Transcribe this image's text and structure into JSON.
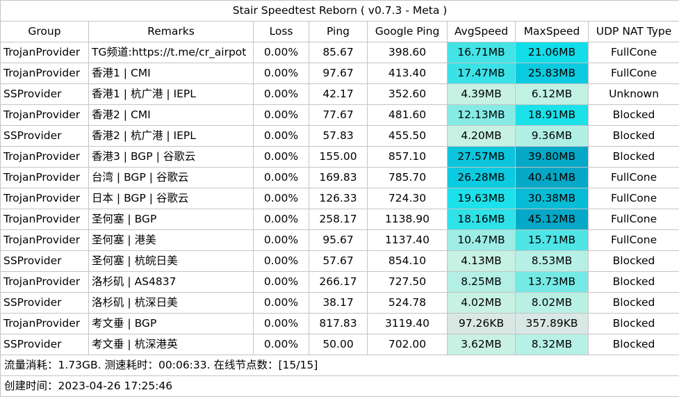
{
  "title": "Stair Speedtest Reborn ( v0.7.3 - Meta )",
  "columns": [
    "Group",
    "Remarks",
    "Loss",
    "Ping",
    "Google Ping",
    "AvgSpeed",
    "MaxSpeed",
    "UDP NAT Type"
  ],
  "rows": [
    {
      "group": "TrojanProvider",
      "remarks": "TG频道:https://t.me/cr_airpot",
      "loss": "0.00%",
      "ping": "85.67",
      "google_ping": "398.60",
      "avg_speed": "16.71MB",
      "max_speed": "21.06MB",
      "nat": "FullCone",
      "avg_color": "#43e3e6",
      "max_color": "#12dde9"
    },
    {
      "group": "TrojanProvider",
      "remarks": "香港1 | CMI",
      "loss": "0.00%",
      "ping": "97.67",
      "google_ping": "413.40",
      "avg_speed": "17.47MB",
      "max_speed": "25.83MB",
      "nat": "FullCone",
      "avg_color": "#3ae2e7",
      "max_color": "#0ccbe0"
    },
    {
      "group": "SSProvider",
      "remarks": "香港1 | 杭广港 | IEPL",
      "loss": "0.00%",
      "ping": "42.17",
      "google_ping": "352.60",
      "avg_speed": "4.39MB",
      "max_speed": "6.12MB",
      "nat": "Unknown",
      "avg_color": "#c6f1e3",
      "max_color": "#c0f1e3"
    },
    {
      "group": "TrojanProvider",
      "remarks": "香港2 | CMI",
      "loss": "0.00%",
      "ping": "77.67",
      "google_ping": "481.60",
      "avg_speed": "12.13MB",
      "max_speed": "18.91MB",
      "nat": "Blocked",
      "avg_color": "#87ebe5",
      "max_color": "#1ae1ea"
    },
    {
      "group": "SSProvider",
      "remarks": "香港2 | 杭广港 | IEPL",
      "loss": "0.00%",
      "ping": "57.83",
      "google_ping": "455.50",
      "avg_speed": "4.20MB",
      "max_speed": "9.36MB",
      "nat": "Blocked",
      "avg_color": "#c7f1e3",
      "max_color": "#b0efe4"
    },
    {
      "group": "TrojanProvider",
      "remarks": "香港3 | BGP | 谷歌云",
      "loss": "0.00%",
      "ping": "155.00",
      "google_ping": "857.10",
      "avg_speed": "27.57MB",
      "max_speed": "39.80MB",
      "nat": "Blocked",
      "avg_color": "#0cc5dc",
      "max_color": "#05a8c6"
    },
    {
      "group": "TrojanProvider",
      "remarks": "台湾 | BGP | 谷歌云",
      "loss": "0.00%",
      "ping": "169.83",
      "google_ping": "785.70",
      "avg_speed": "26.28MB",
      "max_speed": "40.41MB",
      "nat": "FullCone",
      "avg_color": "#0ccadf",
      "max_color": "#05a8c6"
    },
    {
      "group": "TrojanProvider",
      "remarks": "日本 | BGP | 谷歌云",
      "loss": "0.00%",
      "ping": "126.33",
      "google_ping": "724.30",
      "avg_speed": "19.63MB",
      "max_speed": "30.38MB",
      "nat": "FullCone",
      "avg_color": "#1ce1ea",
      "max_color": "#08bcd6"
    },
    {
      "group": "TrojanProvider",
      "remarks": "圣何塞 | BGP",
      "loss": "0.00%",
      "ping": "258.17",
      "google_ping": "1138.90",
      "avg_speed": "18.16MB",
      "max_speed": "45.12MB",
      "nat": "FullCone",
      "avg_color": "#2fe2e8",
      "max_color": "#05a8c6"
    },
    {
      "group": "TrojanProvider",
      "remarks": "圣何塞 | 港美",
      "loss": "0.00%",
      "ping": "95.67",
      "google_ping": "1137.40",
      "avg_speed": "10.47MB",
      "max_speed": "15.71MB",
      "nat": "FullCone",
      "avg_color": "#9eede5",
      "max_color": "#4fe4e6"
    },
    {
      "group": "SSProvider",
      "remarks": "圣何塞 | 杭皖日美",
      "loss": "0.00%",
      "ping": "57.67",
      "google_ping": "854.10",
      "avg_speed": "4.13MB",
      "max_speed": "8.53MB",
      "nat": "Blocked",
      "avg_color": "#c7f1e3",
      "max_color": "#b6f0e4"
    },
    {
      "group": "TrojanProvider",
      "remarks": "洛杉矶 | AS4837",
      "loss": "0.00%",
      "ping": "266.17",
      "google_ping": "727.50",
      "avg_speed": "8.25MB",
      "max_speed": "13.73MB",
      "nat": "Blocked",
      "avg_color": "#b3efe4",
      "max_color": "#75e9e5"
    },
    {
      "group": "SSProvider",
      "remarks": "洛杉矶 | 杭深日美",
      "loss": "0.00%",
      "ping": "38.17",
      "google_ping": "524.78",
      "avg_speed": "4.02MB",
      "max_speed": "8.02MB",
      "nat": "Blocked",
      "avg_color": "#c7f1e3",
      "max_color": "#b8f0e4"
    },
    {
      "group": "TrojanProvider",
      "remarks": "考文垂 | BGP",
      "loss": "0.00%",
      "ping": "817.83",
      "google_ping": "3119.40",
      "avg_speed": "97.26KB",
      "max_speed": "357.89KB",
      "nat": "Blocked",
      "avg_color": "#d9e8e4",
      "max_color": "#d9e8e4"
    },
    {
      "group": "SSProvider",
      "remarks": "考文垂 | 杭深港英",
      "loss": "0.00%",
      "ping": "50.00",
      "google_ping": "702.00",
      "avg_speed": "3.62MB",
      "max_speed": "8.32MB",
      "nat": "Blocked",
      "avg_color": "#c9f1e3",
      "max_color": "#b7f0e4"
    }
  ],
  "footer": {
    "traffic": "流量消耗：1.73GB. 测速耗时：00:06:33. 在线节点数：[15/15]",
    "created": "创建时间：2023-04-26 17:25:46"
  }
}
